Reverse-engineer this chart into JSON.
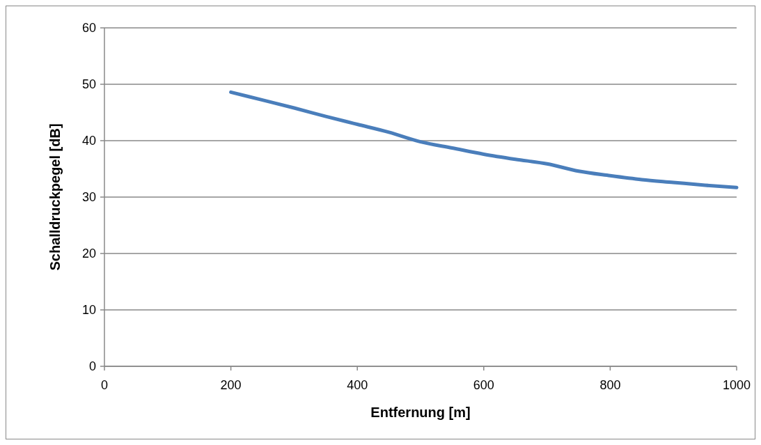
{
  "chart_data": {
    "type": "line",
    "xlabel": "Entfernung [m]",
    "ylabel": "Schalldruckpegel [dB]",
    "x": [
      200,
      250,
      300,
      350,
      400,
      450,
      500,
      550,
      600,
      650,
      700,
      750,
      800,
      850,
      900,
      950,
      1000
    ],
    "series": [
      {
        "color": "#4a7ebb",
        "values": [
          48.6,
          47.2,
          45.8,
          44.3,
          42.9,
          41.5,
          39.8,
          38.7,
          37.6,
          36.7,
          35.9,
          34.6,
          33.8,
          33.1,
          32.6,
          32.1,
          31.7
        ]
      }
    ],
    "xlim": [
      0,
      1000
    ],
    "xticks": [
      0,
      200,
      400,
      600,
      800,
      1000
    ],
    "ylim": [
      0,
      60
    ],
    "yticks": [
      0,
      10,
      20,
      30,
      40,
      50,
      60
    ],
    "grid": "y",
    "marker": "none",
    "line_style": "solid"
  }
}
